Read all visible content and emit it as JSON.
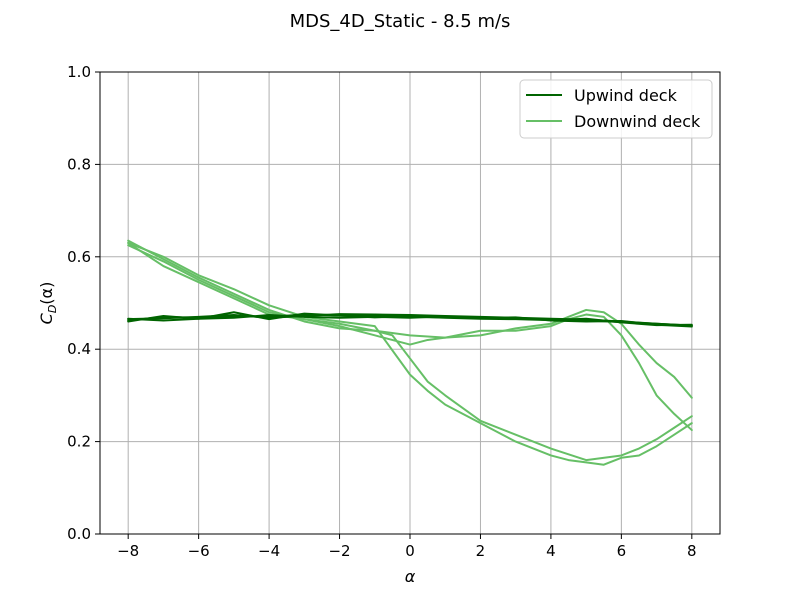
{
  "chart_data": {
    "type": "line",
    "title": "MDS_4D_Static - 8.5 m/s",
    "xlabel": "α",
    "ylabel_main": "C",
    "ylabel_sub": "D",
    "ylabel_tail": "(α)",
    "xlim": [
      -8.8,
      8.8
    ],
    "ylim": [
      0.0,
      1.0
    ],
    "xticks": [
      -8,
      -6,
      -4,
      -2,
      0,
      2,
      4,
      6,
      8
    ],
    "xtick_labels": [
      "−8",
      "−6",
      "−4",
      "−2",
      "0",
      "2",
      "4",
      "6",
      "8"
    ],
    "yticks": [
      0.0,
      0.2,
      0.4,
      0.6,
      0.8,
      1.0
    ],
    "ytick_labels": [
      "0.0",
      "0.2",
      "0.4",
      "0.6",
      "0.8",
      "1.0"
    ],
    "grid": true,
    "legend_position": "top-right",
    "series": [
      {
        "name": "Upwind deck",
        "color": "#006400",
        "segments": [
          {
            "x": [
              -8,
              -7,
              -6,
              -5,
              -4,
              -3,
              -2,
              -1,
              0,
              1,
              2,
              3,
              4,
              5,
              6,
              7,
              8
            ],
            "y": [
              0.462,
              0.47,
              0.468,
              0.472,
              0.47,
              0.475,
              0.473,
              0.472,
              0.47,
              0.469,
              0.468,
              0.466,
              0.464,
              0.462,
              0.459,
              0.455,
              0.451
            ]
          },
          {
            "x": [
              8,
              7,
              6,
              5,
              4,
              3,
              2,
              1,
              0,
              -1,
              -2,
              -3,
              -4,
              -5,
              -6,
              -7,
              -8
            ],
            "y": [
              0.451,
              0.455,
              0.46,
              0.464,
              0.466,
              0.468,
              0.47,
              0.472,
              0.474,
              0.475,
              0.476,
              0.472,
              0.468,
              0.474,
              0.47,
              0.467,
              0.465
            ]
          },
          {
            "x": [
              -8,
              -7,
              -6,
              -5,
              -4,
              -3,
              -2,
              -1,
              0,
              1,
              2,
              3,
              4,
              5,
              6,
              7,
              8
            ],
            "y": [
              0.466,
              0.462,
              0.466,
              0.468,
              0.474,
              0.47,
              0.468,
              0.47,
              0.468,
              0.471,
              0.467,
              0.469,
              0.462,
              0.46,
              0.461,
              0.453,
              0.449
            ]
          },
          {
            "x": [
              8,
              7,
              6,
              5,
              4,
              3,
              2,
              1,
              0,
              -1,
              -2,
              -3,
              -4,
              -5,
              -6,
              -7,
              -8
            ],
            "y": [
              0.453,
              0.452,
              0.458,
              0.466,
              0.463,
              0.465,
              0.466,
              0.468,
              0.471,
              0.469,
              0.473,
              0.477,
              0.465,
              0.48,
              0.466,
              0.472,
              0.46
            ]
          }
        ]
      },
      {
        "name": "Downwind deck",
        "color": "#66BF66",
        "segments": [
          {
            "x": [
              -8,
              -7,
              -6,
              -5,
              -4,
              -3,
              -2,
              -1,
              0,
              0.5,
              1,
              2,
              3,
              4,
              4.5,
              5,
              5.5,
              6,
              6.5,
              7,
              7.5,
              8
            ],
            "y": [
              0.63,
              0.6,
              0.56,
              0.53,
              0.495,
              0.47,
              0.46,
              0.45,
              0.345,
              0.31,
              0.28,
              0.24,
              0.2,
              0.17,
              0.16,
              0.155,
              0.15,
              0.165,
              0.17,
              0.19,
              0.215,
              0.24
            ]
          },
          {
            "x": [
              8,
              7.5,
              7,
              6.5,
              6,
              5.5,
              5,
              4.5,
              4,
              3,
              2,
              1,
              0,
              -1,
              -2,
              -3,
              -4,
              -5,
              -6,
              -7,
              -8
            ],
            "y": [
              0.295,
              0.34,
              0.37,
              0.41,
              0.455,
              0.48,
              0.485,
              0.47,
              0.455,
              0.445,
              0.43,
              0.425,
              0.43,
              0.44,
              0.445,
              0.46,
              0.485,
              0.52,
              0.555,
              0.595,
              0.635
            ]
          },
          {
            "x": [
              -8,
              -7,
              -6,
              -5,
              -4,
              -3,
              -2,
              -1,
              -0.5,
              0,
              0.5,
              1,
              2,
              3,
              4,
              5,
              6,
              6.5,
              7,
              7.5,
              8
            ],
            "y": [
              0.625,
              0.59,
              0.55,
              0.515,
              0.48,
              0.465,
              0.455,
              0.44,
              0.43,
              0.38,
              0.33,
              0.3,
              0.245,
              0.215,
              0.185,
              0.16,
              0.17,
              0.185,
              0.205,
              0.23,
              0.255
            ]
          },
          {
            "x": [
              8,
              7.5,
              7,
              6.5,
              6,
              5.5,
              5,
              4.5,
              4,
              3,
              2,
              1,
              0.5,
              0,
              -1,
              -2,
              -3,
              -4,
              -5,
              -6,
              -7,
              -8
            ],
            "y": [
              0.225,
              0.26,
              0.3,
              0.37,
              0.43,
              0.47,
              0.475,
              0.465,
              0.45,
              0.44,
              0.44,
              0.425,
              0.42,
              0.41,
              0.43,
              0.45,
              0.465,
              0.475,
              0.51,
              0.545,
              0.58,
              0.63
            ]
          }
        ]
      }
    ]
  }
}
